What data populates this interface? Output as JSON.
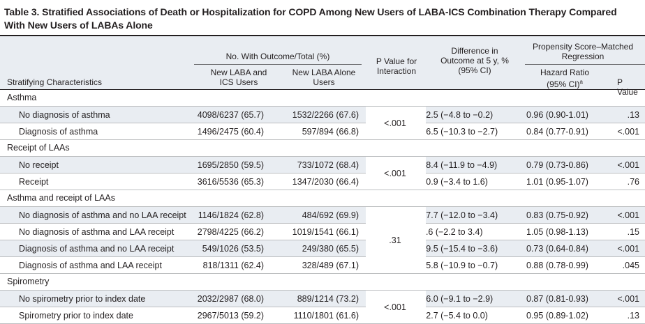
{
  "title": "Table 3. Stratified Associations of Death or Hospitalization for COPD Among New Users of LABA-ICS Combination Therapy Compared With New Users of LABAs Alone",
  "headers": {
    "group_outcome": "No. With Outcome/Total (%)",
    "group_regression": "Propensity Score–Matched Regression",
    "stratifying": "Stratifying Characteristics",
    "new_laba_ics": "New LABA and ICS Users",
    "new_laba_alone": "New LABA Alone Users",
    "p_interaction": "P Value for Interaction",
    "difference": "Difference in Outcome at 5 y, % (95% CI)",
    "hazard_ratio": "Hazard Ratio (95% CI)",
    "hazard_ratio_sup": "a",
    "p_value": "P Value"
  },
  "sections": [
    {
      "label": "Asthma",
      "p_interaction": "<.001",
      "rows": [
        {
          "characteristic": "No diagnosis of asthma",
          "laba_ics": "4098/6237 (65.7)",
          "laba_alone": "1532/2266 (67.6)",
          "difference": "−2.5 (−4.8 to −0.2)",
          "hazard_ratio": "0.96 (0.90-1.01)",
          "p_value": ".13"
        },
        {
          "characteristic": "Diagnosis of asthma",
          "laba_ics": "1496/2475 (60.4)",
          "laba_alone": "597/894 (66.8)",
          "difference": "−6.5 (−10.3 to −2.7)",
          "hazard_ratio": "0.84 (0.77-0.91)",
          "p_value": "<.001"
        }
      ]
    },
    {
      "label": "Receipt of LAAs",
      "p_interaction": "<.001",
      "rows": [
        {
          "characteristic": "No receipt",
          "laba_ics": "1695/2850 (59.5)",
          "laba_alone": "733/1072 (68.4)",
          "difference": "−8.4 (−11.9 to −4.9)",
          "hazard_ratio": "0.79 (0.73-0.86)",
          "p_value": "<.001"
        },
        {
          "characteristic": "Receipt",
          "laba_ics": "3616/5536 (65.3)",
          "laba_alone": "1347/2030 (66.4)",
          "difference": "−0.9 (−3.4 to 1.6)",
          "hazard_ratio": "1.01 (0.95-1.07)",
          "p_value": ".76"
        }
      ]
    },
    {
      "label": "Asthma and receipt of LAAs",
      "p_interaction": ".31",
      "rows": [
        {
          "characteristic": "No diagnosis of asthma and no LAA receipt",
          "laba_ics": "1146/1824 (62.8)",
          "laba_alone": "484/692 (69.9)",
          "difference": "−7.7 (−12.0 to −3.4)",
          "hazard_ratio": "0.83 (0.75-0.92)",
          "p_value": "<.001"
        },
        {
          "characteristic": "No diagnosis of asthma and LAA receipt",
          "laba_ics": "2798/4225 (66.2)",
          "laba_alone": "1019/1541 (66.1)",
          "difference": "0.6 (−2.2 to 3.4)",
          "hazard_ratio": "1.05 (0.98-1.13)",
          "p_value": ".15"
        },
        {
          "characteristic": "Diagnosis of asthma and no LAA receipt",
          "laba_ics": "549/1026 (53.5)",
          "laba_alone": "249/380 (65.5)",
          "difference": "−9.5 (−15.4 to −3.6)",
          "hazard_ratio": "0.73 (0.64-0.84)",
          "p_value": "<.001"
        },
        {
          "characteristic": "Diagnosis of asthma and LAA receipt",
          "laba_ics": "818/1311 (62.4)",
          "laba_alone": "328/489 (67.1)",
          "difference": "−5.8 (−10.9 to −0.7)",
          "hazard_ratio": "0.88 (0.78-0.99)",
          "p_value": ".045"
        }
      ]
    },
    {
      "label": "Spirometry",
      "p_interaction": "<.001",
      "rows": [
        {
          "characteristic": "No spirometry prior to index date",
          "laba_ics": "2032/2987 (68.0)",
          "laba_alone": "889/1214 (73.2)",
          "difference": "−6.0 (−9.1 to −2.9)",
          "hazard_ratio": "0.87 (0.81-0.93)",
          "p_value": "<.001"
        },
        {
          "characteristic": "Spirometry prior to index date",
          "laba_ics": "2967/5013 (59.2)",
          "laba_alone": "1110/1801 (61.6)",
          "difference": "−2.7 (−5.4 to 0.0)",
          "hazard_ratio": "0.95 (0.89-1.02)",
          "p_value": ".13"
        }
      ]
    }
  ]
}
